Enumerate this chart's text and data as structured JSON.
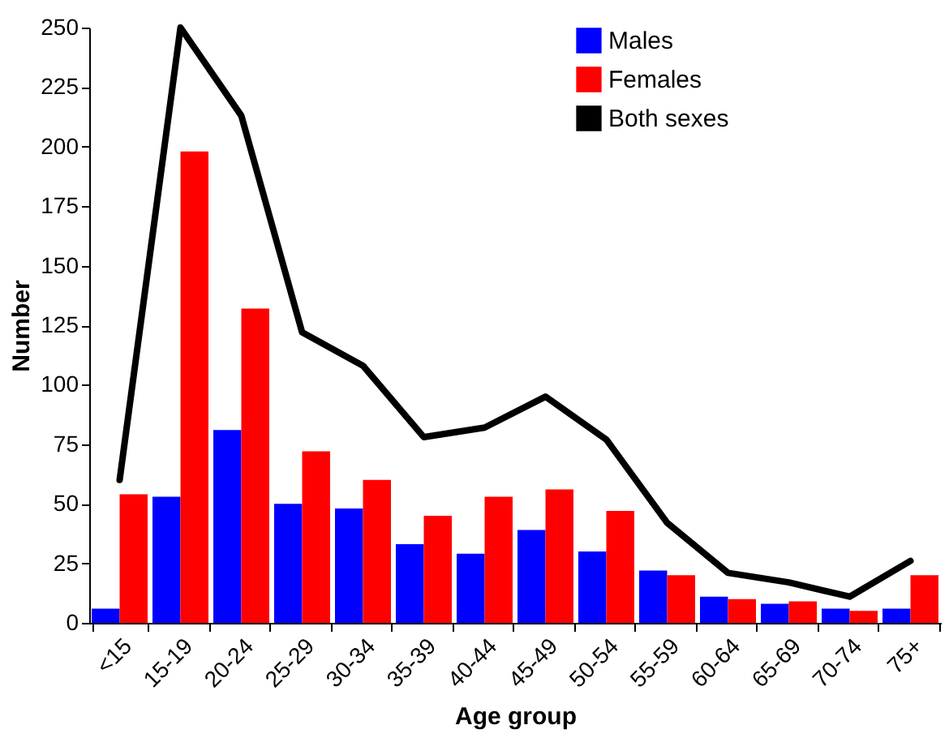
{
  "chart_data": {
    "type": "bar",
    "xlabel": "Age group",
    "ylabel": "Number",
    "categories": [
      "<15",
      "15-19",
      "20-24",
      "25-29",
      "30-34",
      "35-39",
      "40-44",
      "45-49",
      "50-54",
      "55-59",
      "60-64",
      "65-69",
      "70-74",
      "75+"
    ],
    "series": [
      {
        "name": "Males",
        "color": "#0000ff",
        "values": [
          6,
          53,
          81,
          50,
          48,
          33,
          29,
          39,
          30,
          22,
          11,
          8,
          6,
          6
        ]
      },
      {
        "name": "Females",
        "color": "#ff0000",
        "values": [
          54,
          198,
          132,
          72,
          60,
          45,
          53,
          56,
          47,
          20,
          10,
          9,
          5,
          20
        ]
      },
      {
        "name": "Both sexes",
        "type": "line",
        "color": "#000000",
        "values": [
          60,
          250,
          213,
          122,
          108,
          78,
          82,
          95,
          77,
          42,
          21,
          17,
          11,
          26
        ]
      }
    ],
    "ylim": [
      0,
      250
    ],
    "yticks": [
      0,
      25,
      50,
      75,
      100,
      125,
      150,
      175,
      200,
      225,
      250
    ],
    "grid": false,
    "legend": "top right",
    "line_style": "solid",
    "marker": "none"
  }
}
